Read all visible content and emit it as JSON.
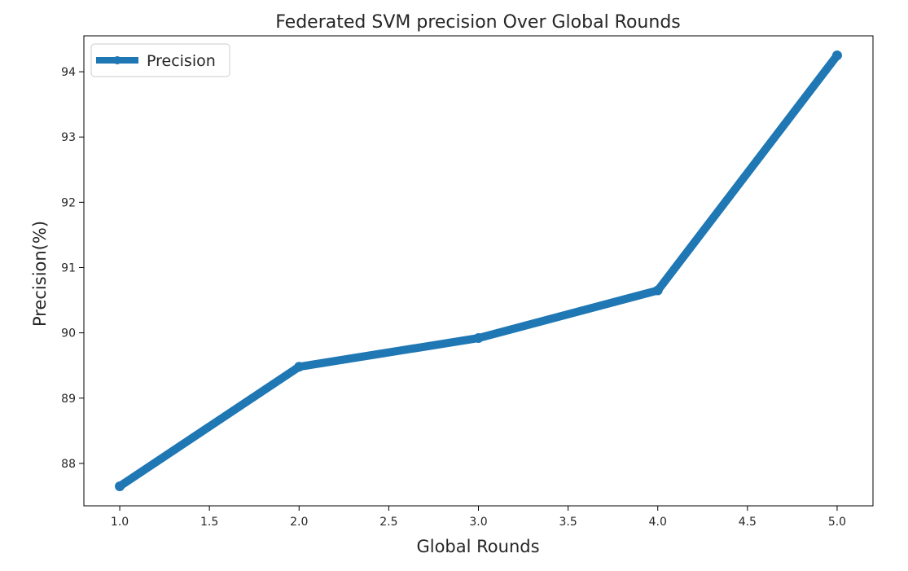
{
  "chart_data": {
    "type": "line",
    "title": "Federated SVM precision Over Global Rounds",
    "xlabel": "Global Rounds",
    "ylabel": "Precision(%)",
    "x": [
      1.0,
      2.0,
      3.0,
      4.0,
      5.0
    ],
    "series": [
      {
        "name": "Precision",
        "values": [
          87.65,
          89.48,
          89.92,
          90.65,
          94.25
        ],
        "color": "#1f77b4"
      }
    ],
    "xlim": [
      0.8,
      5.2
    ],
    "ylim": [
      87.35,
      94.55
    ],
    "xticks": [
      "1.0",
      "1.5",
      "2.0",
      "2.5",
      "3.0",
      "3.5",
      "4.0",
      "4.5",
      "5.0"
    ],
    "yticks": [
      "88",
      "89",
      "90",
      "91",
      "92",
      "93",
      "94"
    ],
    "legend_position": "top-left",
    "grid": false
  }
}
